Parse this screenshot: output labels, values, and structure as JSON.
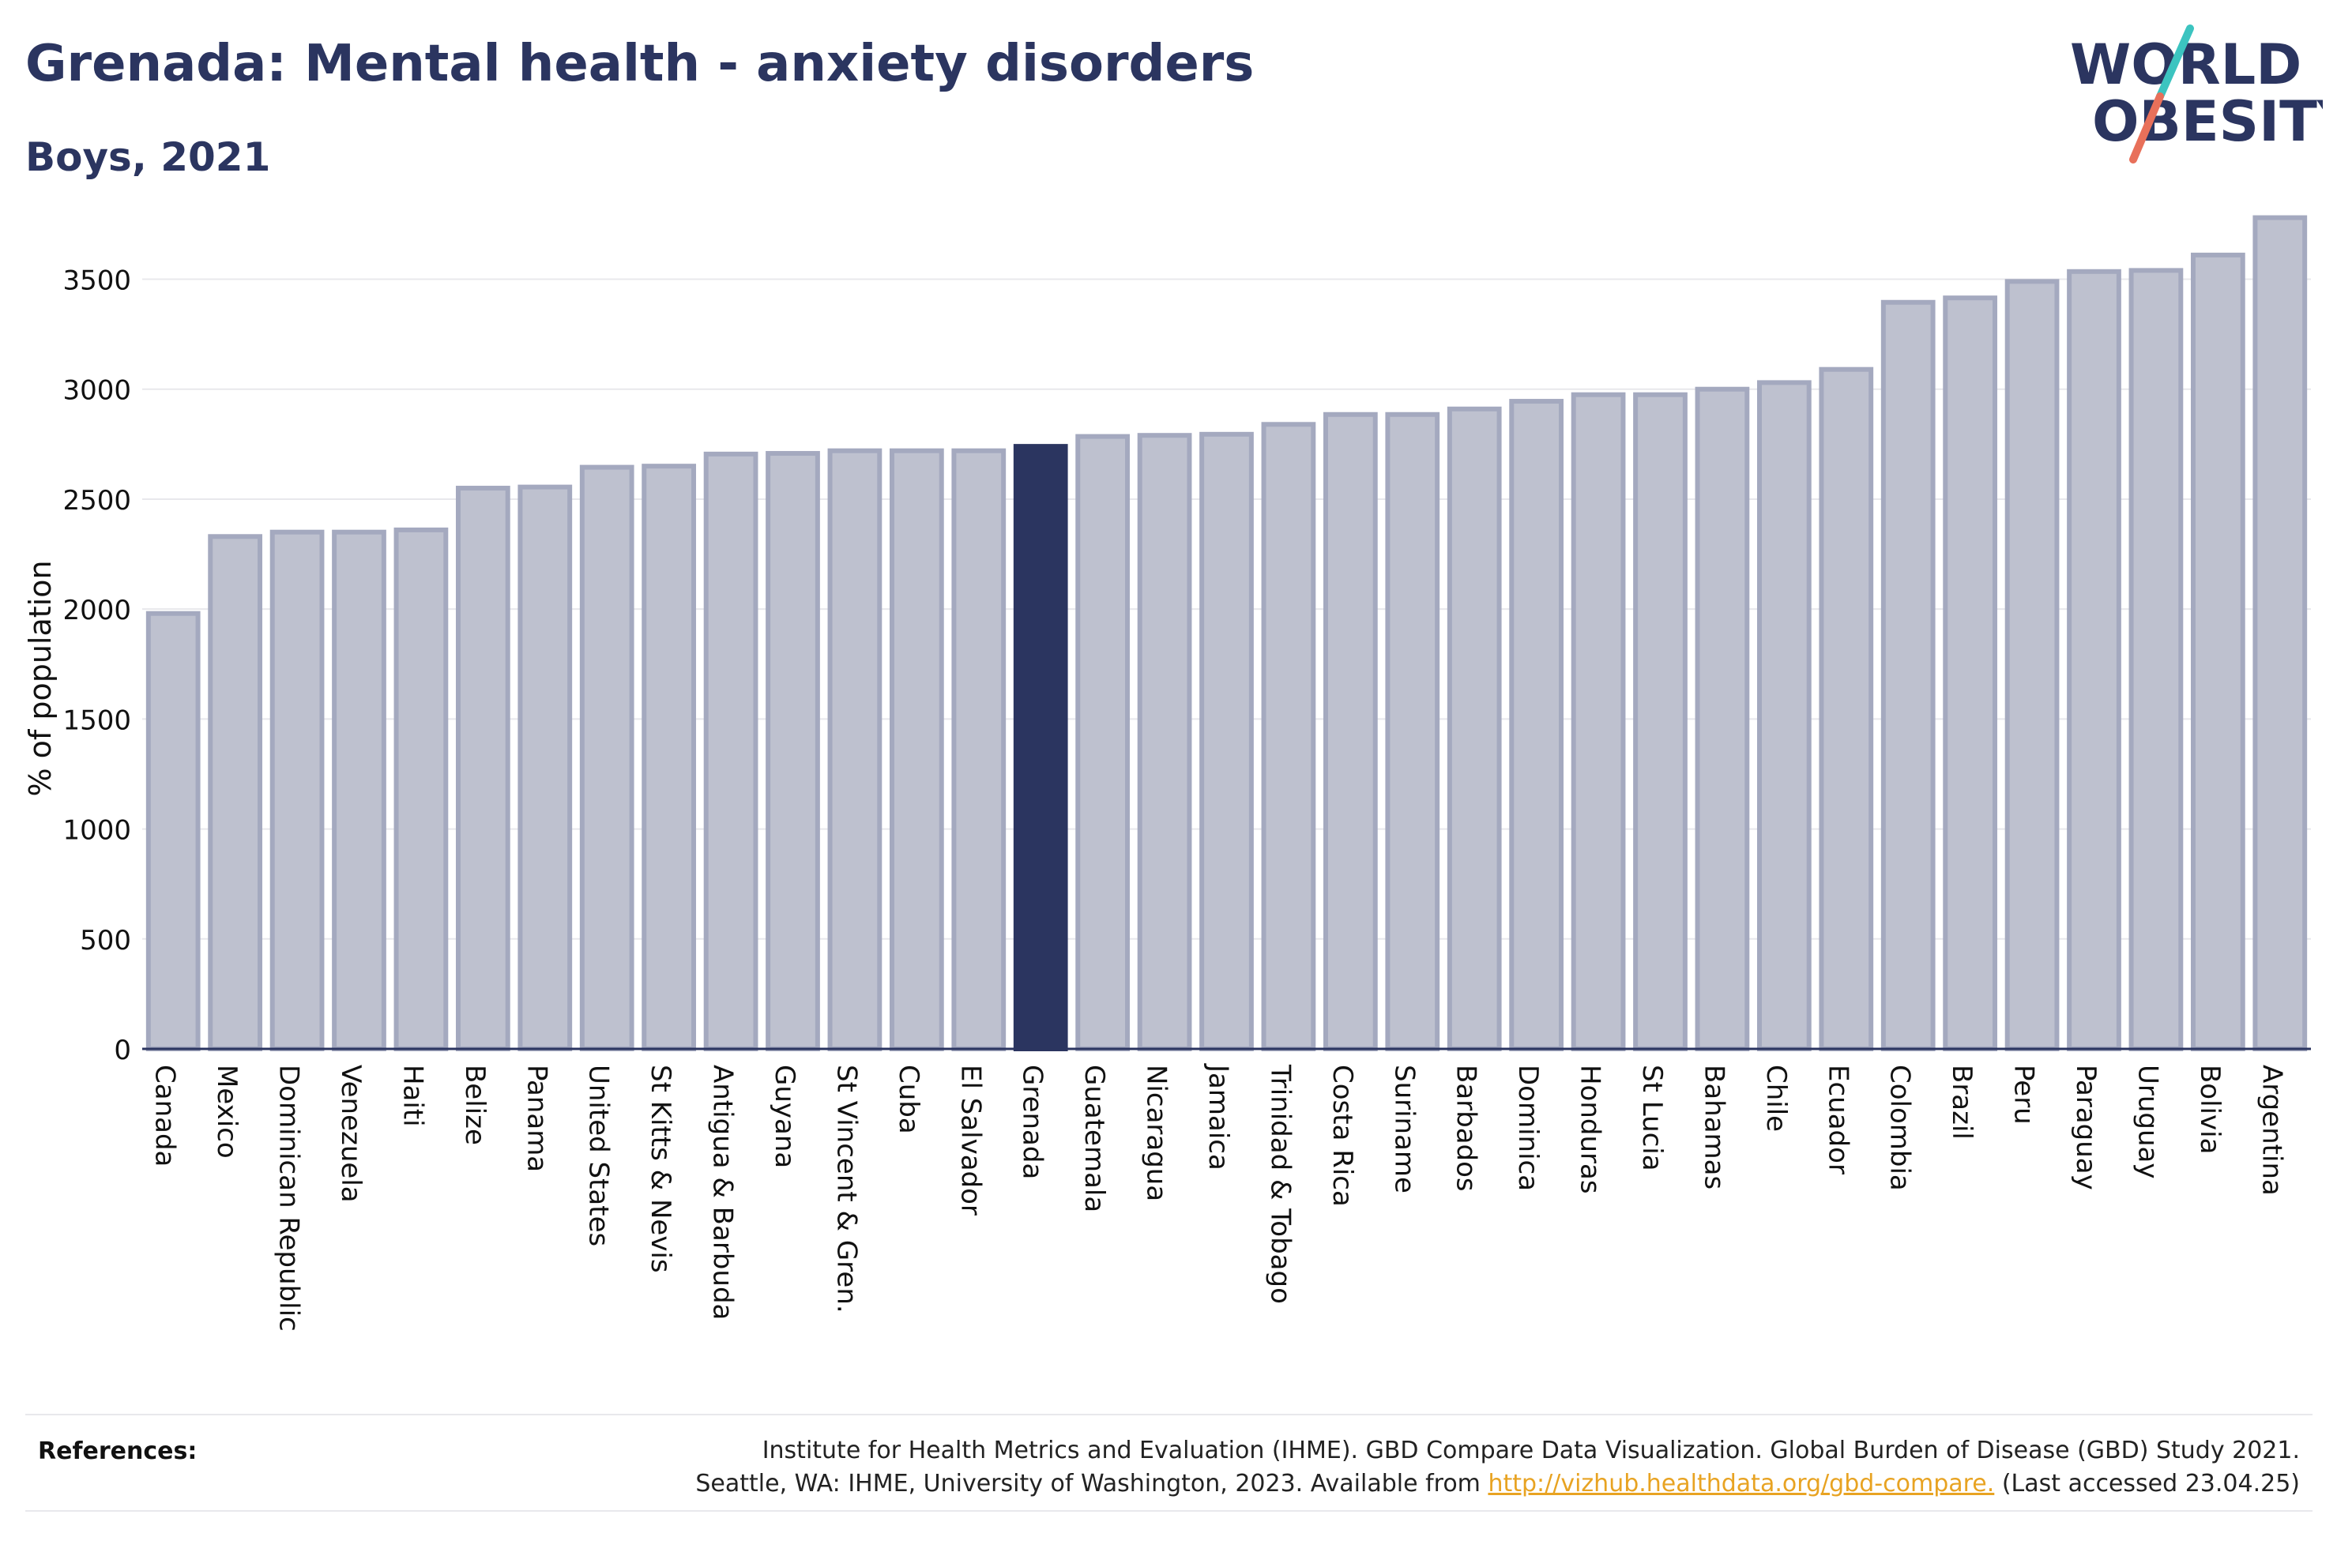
{
  "header": {
    "title": "Grenada: Mental health - anxiety disorders",
    "subtitle": "Boys, 2021"
  },
  "logo": {
    "line1": "WORLD",
    "line2": "OBESITY",
    "accent_colors": [
      "#3cc4c0",
      "#e8705a"
    ]
  },
  "colors": {
    "bar": "#bec1cf",
    "bar_edge": "#a4a9bf",
    "highlight": "#2b3560",
    "grid": "#e8e8ec"
  },
  "chart_data": {
    "type": "bar",
    "ylabel": "% of population",
    "ylim": [
      0,
      3800
    ],
    "yticks": [
      0,
      500,
      1000,
      1500,
      2000,
      2500,
      3000,
      3500
    ],
    "grid": "horizontal",
    "highlight": "Grenada",
    "categories": [
      "Canada",
      "Mexico",
      "Dominican Republic",
      "Venezuela",
      "Haiti",
      "Belize",
      "Panama",
      "United States",
      "St Kitts & Nevis",
      "Antigua & Barbuda",
      "Guyana",
      "St Vincent & Gren.",
      "Cuba",
      "El Salvador",
      "Grenada",
      "Guatemala",
      "Nicaragua",
      "Jamaica",
      "Trinidad & Tobago",
      "Costa Rica",
      "Suriname",
      "Barbados",
      "Dominica",
      "Honduras",
      "St Lucia",
      "Bahamas",
      "Chile",
      "Ecuador",
      "Colombia",
      "Brazil",
      "Peru",
      "Paraguay",
      "Uruguay",
      "Bolivia",
      "Argentina"
    ],
    "values": [
      1980,
      2330,
      2350,
      2350,
      2360,
      2550,
      2555,
      2645,
      2650,
      2705,
      2708,
      2720,
      2720,
      2720,
      2740,
      2785,
      2790,
      2795,
      2840,
      2885,
      2885,
      2910,
      2945,
      2975,
      2975,
      3000,
      3030,
      3090,
      3395,
      3415,
      3490,
      3535,
      3540,
      3610,
      3780
    ]
  },
  "references": {
    "label": "References:",
    "line1": "Institute for Health Metrics and Evaluation (IHME). GBD Compare Data Visualization. Global Burden of Disease (GBD) Study 2021.",
    "line2_prefix": "Seattle, WA: IHME, University of Washington, 2023. Available from ",
    "link": "http://vizhub.healthdata.org/gbd-compare.",
    "line2_suffix": " (Last accessed 23.04.25)"
  }
}
